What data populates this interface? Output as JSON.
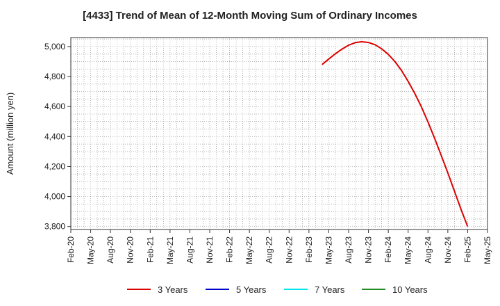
{
  "chart_data": {
    "type": "line",
    "title": "[4433]  Trend of Mean of 12-Month Moving Sum of Ordinary Incomes",
    "ylabel": "Amount (million yen)",
    "xlabel": "",
    "ylim": [
      3780,
      5060
    ],
    "yticks": [
      3800,
      4000,
      4200,
      4400,
      4600,
      4800,
      5000
    ],
    "ytick_labels": [
      "3,800",
      "4,000",
      "4,200",
      "4,400",
      "4,600",
      "4,800",
      "5,000"
    ],
    "x_labels": [
      "Feb-20",
      "May-20",
      "Aug-20",
      "Nov-20",
      "Feb-21",
      "May-21",
      "Aug-21",
      "Nov-21",
      "Feb-22",
      "May-22",
      "Aug-22",
      "Nov-22",
      "Feb-23",
      "May-23",
      "Aug-23",
      "Nov-23",
      "Feb-24",
      "May-24",
      "Aug-24",
      "Nov-24",
      "Feb-25",
      "May-25"
    ],
    "grid": true,
    "legend_position": "bottom",
    "series": [
      {
        "name": "3 Years",
        "color": "#dd0000",
        "x": [
          "Apr-23",
          "May-23",
          "Jun-23",
          "Jul-23",
          "Aug-23",
          "Sep-23",
          "Oct-23",
          "Nov-23",
          "Dec-23",
          "Jan-24",
          "Feb-24",
          "Mar-24",
          "Apr-24",
          "May-24",
          "Jun-24",
          "Jul-24",
          "Aug-24",
          "Sep-24",
          "Oct-24",
          "Nov-24",
          "Dec-24",
          "Jan-25",
          "Feb-25"
        ],
        "values": [
          4880,
          4917,
          4952,
          4983,
          5009,
          5026,
          5032,
          5027,
          5012,
          4985,
          4948,
          4900,
          4840,
          4768,
          4688,
          4598,
          4497,
          4389,
          4275,
          4157,
          4036,
          3914,
          3800
        ]
      },
      {
        "name": "5 Years",
        "color": "#0000cc",
        "x": [],
        "values": []
      },
      {
        "name": "7 Years",
        "color": "#00e5ee",
        "x": [],
        "values": []
      },
      {
        "name": "10 Years",
        "color": "#228b22",
        "x": [],
        "values": []
      }
    ]
  }
}
